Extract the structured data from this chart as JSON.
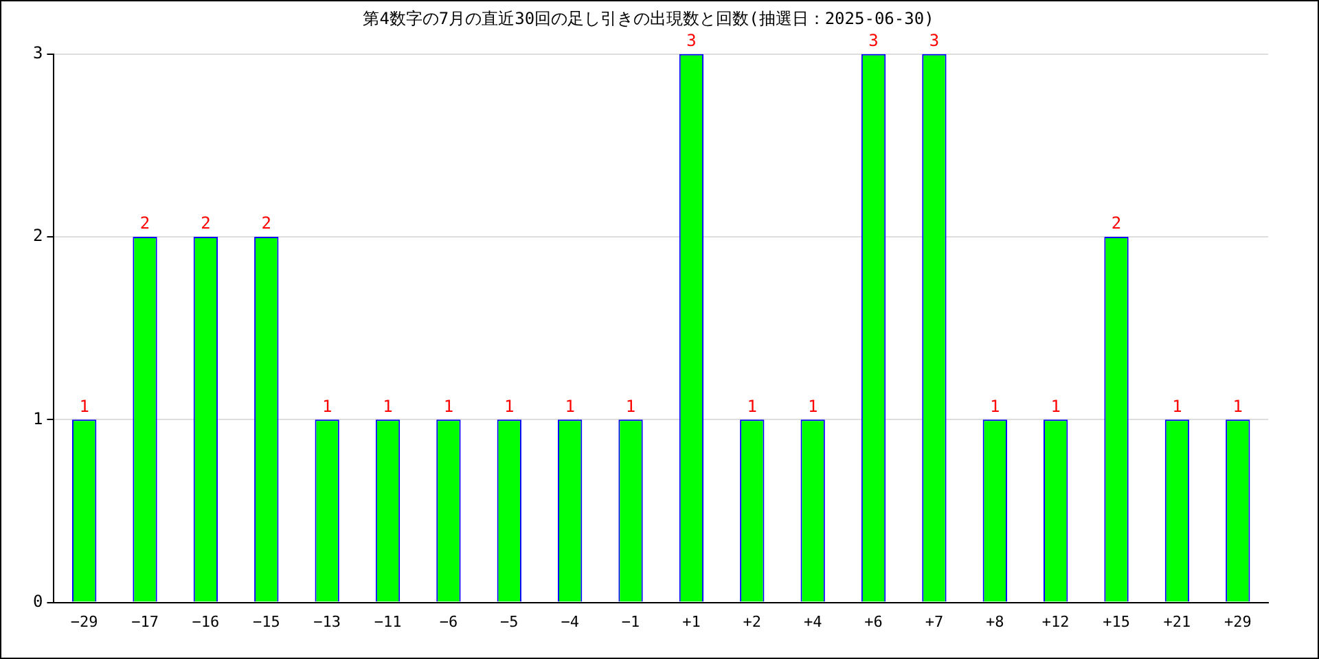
{
  "chart_data": {
    "type": "bar",
    "title": "第4数字の7月の直近30回の足し引きの出現数と回数(抽選日：2025-06-30)",
    "categories": [
      "−29",
      "−17",
      "−16",
      "−15",
      "−13",
      "−11",
      "−6",
      "−5",
      "−4",
      "−1",
      "+1",
      "+2",
      "+4",
      "+6",
      "+7",
      "+8",
      "+12",
      "+15",
      "+21",
      "+29"
    ],
    "series": [
      {
        "color": "#00ff00",
        "values": [
          1,
          2,
          2,
          2,
          1,
          1,
          1,
          1,
          1,
          1,
          3,
          1,
          1,
          3,
          3,
          1,
          1,
          2,
          1,
          1
        ]
      }
    ],
    "ylim": [
      0,
      3
    ],
    "yticks": [
      0,
      1,
      2,
      3
    ],
    "grid": "y",
    "legend": false,
    "data_labels": true
  }
}
